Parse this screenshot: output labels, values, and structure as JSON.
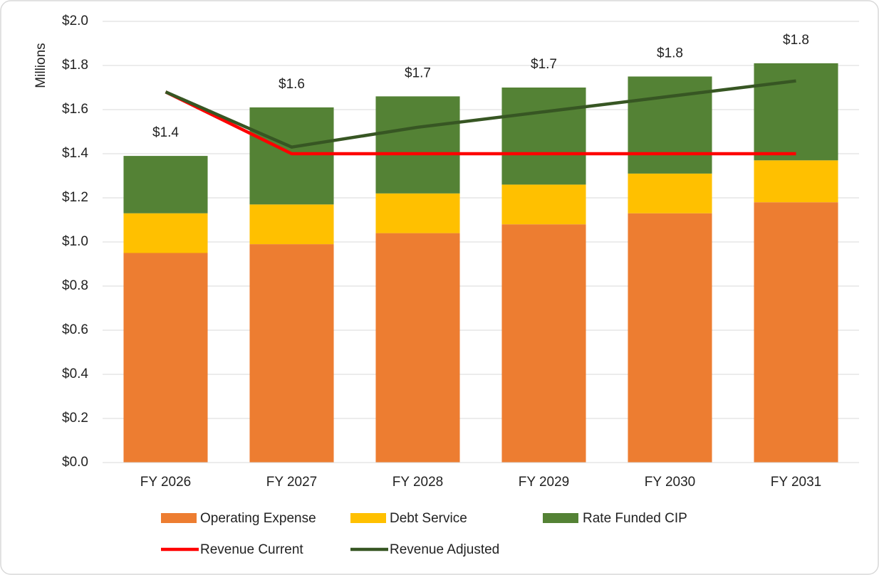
{
  "chart_data": {
    "type": "stacked_bar_line",
    "y_label": "Millions",
    "categories": [
      "FY 2026",
      "FY 2027",
      "FY 2028",
      "FY 2029",
      "FY 2030",
      "FY 2031"
    ],
    "series": [
      {
        "name": "Operating Expense",
        "color": "#ed7d31",
        "values": [
          0.95,
          0.99,
          1.04,
          1.08,
          1.13,
          1.18
        ]
      },
      {
        "name": "Debt Service",
        "color": "#ffc000",
        "values": [
          0.18,
          0.18,
          0.18,
          0.18,
          0.18,
          0.19
        ]
      },
      {
        "name": "Rate Funded CIP",
        "color": "#548235",
        "values": [
          0.26,
          0.44,
          0.44,
          0.44,
          0.44,
          0.44
        ]
      }
    ],
    "totals": {
      "values": [
        1.39,
        1.61,
        1.66,
        1.7,
        1.75,
        1.81
      ],
      "value_labels": [
        "$1.4",
        "$1.6",
        "$1.7",
        "$1.7",
        "$1.8",
        "$1.8"
      ]
    },
    "lines": [
      {
        "name": "Revenue Current",
        "color": "#ff0000",
        "values": [
          1.68,
          1.4,
          1.4,
          1.4,
          1.4,
          1.4
        ]
      },
      {
        "name": "Revenue Adjusted",
        "color": "#375623",
        "values": [
          1.68,
          1.43,
          1.52,
          1.59,
          1.66,
          1.73
        ]
      }
    ],
    "ylim": [
      0,
      2.0
    ],
    "yticks": [
      {
        "value": 0,
        "label": "$0.0"
      },
      {
        "value": 0.2,
        "label": "$0.2"
      },
      {
        "value": 0.4,
        "label": "$0.4"
      },
      {
        "value": 0.6,
        "label": "$0.6"
      },
      {
        "value": 0.8,
        "label": "$0.8"
      },
      {
        "value": 1.0,
        "label": "$1.0"
      },
      {
        "value": 1.2,
        "label": "$1.2"
      },
      {
        "value": 1.4,
        "label": "$1.4"
      },
      {
        "value": 1.6,
        "label": "$1.6"
      },
      {
        "value": 1.8,
        "label": "$1.8"
      },
      {
        "value": 2.0,
        "label": "$2.0"
      }
    ],
    "grid": true,
    "legend": "bottom"
  }
}
